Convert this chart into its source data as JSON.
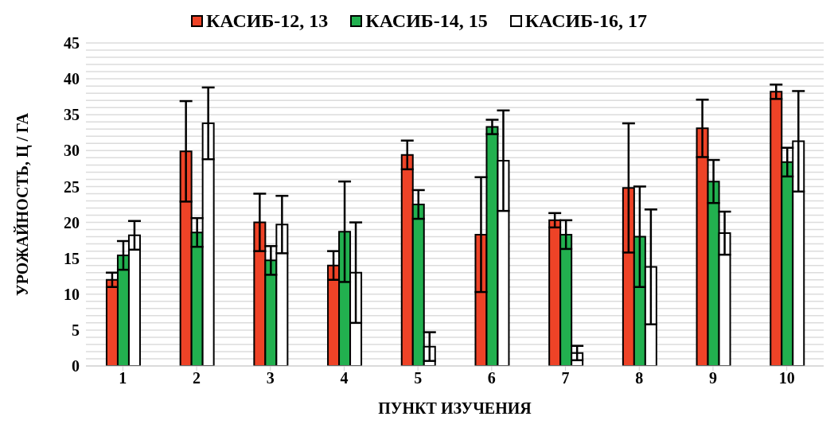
{
  "chart_data": {
    "type": "bar",
    "xlabel": "ПУНКТ ИЗУЧЕНИЯ",
    "ylabel": "УРОЖАЙНОСТЬ, Ц / ГА",
    "categories": [
      "1",
      "2",
      "3",
      "4",
      "5",
      "6",
      "7",
      "8",
      "9",
      "10"
    ],
    "series": [
      {
        "name": "КАСИБ-12, 13",
        "color": "#ee4327",
        "values": [
          12.0,
          29.9,
          20.0,
          14.0,
          29.4,
          18.3,
          20.3,
          24.8,
          33.1,
          38.2
        ],
        "errors": [
          1,
          7,
          4,
          2,
          2,
          8,
          1,
          9,
          4,
          1
        ]
      },
      {
        "name": "КАСИБ-14, 15",
        "color": "#22b04f",
        "values": [
          15.4,
          18.6,
          14.7,
          18.7,
          22.5,
          33.3,
          18.3,
          18.0,
          25.7,
          28.4
        ],
        "errors": [
          2,
          2,
          2,
          7,
          2,
          1,
          2,
          7,
          3,
          2
        ]
      },
      {
        "name": "КАСИБ-16, 17",
        "color": "#ffffff",
        "values": [
          18.2,
          33.8,
          19.7,
          13.0,
          2.7,
          28.6,
          1.8,
          13.8,
          18.5,
          31.3
        ],
        "errors": [
          2,
          5,
          4,
          7,
          2,
          7,
          1,
          8,
          3,
          7
        ]
      }
    ],
    "ylim": [
      0,
      45
    ],
    "yticks": [
      0,
      {
        "value": 1,
        "label": null
      },
      {
        "value": 2,
        "label": null
      },
      {
        "value": 3,
        "label": null
      },
      {
        "value": 4,
        "label": null
      },
      5,
      {
        "value": 6,
        "label": null
      },
      {
        "value": 7,
        "label": null
      },
      {
        "value": 8,
        "label": null
      },
      {
        "value": 9,
        "label": null
      },
      10,
      {
        "value": 11,
        "label": null
      },
      {
        "value": 12,
        "label": null
      },
      {
        "value": 13,
        "label": null
      },
      {
        "value": 14,
        "label": null
      },
      15,
      {
        "value": 16,
        "label": null
      },
      {
        "value": 17,
        "label": null
      },
      {
        "value": 18,
        "label": null
      },
      {
        "value": 19,
        "label": null
      },
      20,
      {
        "value": 21,
        "label": null
      },
      {
        "value": 22,
        "label": null
      },
      {
        "value": 23,
        "label": null
      },
      {
        "value": 24,
        "label": null
      },
      25,
      {
        "value": 26,
        "label": null
      },
      {
        "value": 27,
        "label": null
      },
      {
        "value": 28,
        "label": null
      },
      {
        "value": 29,
        "label": null
      },
      30,
      {
        "value": 31,
        "label": null
      },
      {
        "value": 32,
        "label": null
      },
      {
        "value": 33,
        "label": null
      },
      {
        "value": 34,
        "label": null
      },
      35,
      {
        "value": 36,
        "label": null
      },
      {
        "value": 37,
        "label": null
      },
      {
        "value": 38,
        "label": null
      },
      {
        "value": 39,
        "label": null
      },
      40,
      {
        "value": 41,
        "label": null
      },
      {
        "value": 42,
        "label": null
      },
      {
        "value": 43,
        "label": null
      },
      {
        "value": 44,
        "label": null
      },
      45
    ],
    "grid": "y",
    "legend": "top"
  }
}
